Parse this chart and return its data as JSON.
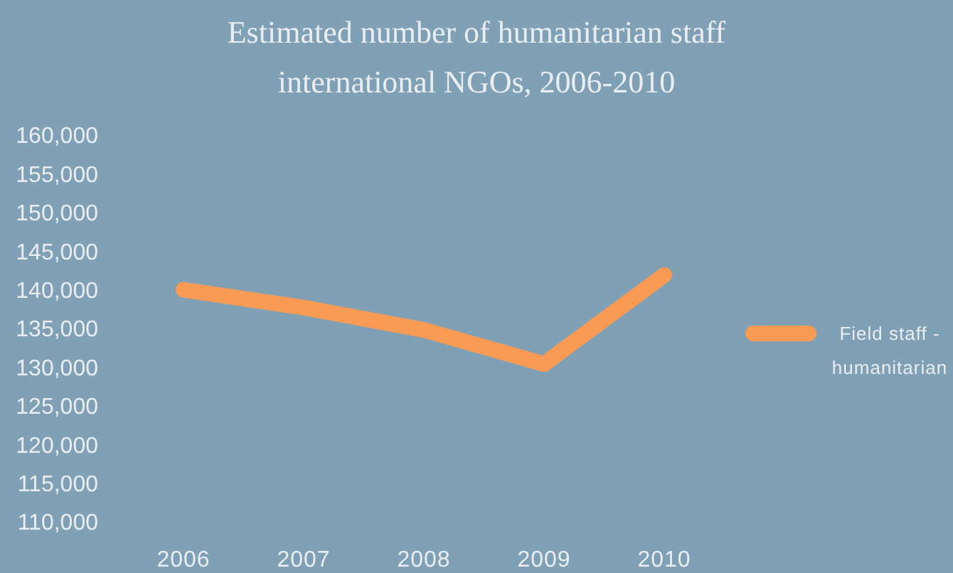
{
  "chart_data": {
    "type": "line",
    "title": "Estimated number of humanitarian staff international NGOs, 2006-2010",
    "categories": [
      "2006",
      "2007",
      "2008",
      "2009",
      "2010"
    ],
    "series": [
      {
        "name": "Field staff - humanitarian",
        "color": "#f99b55",
        "values": [
          140000,
          137700,
          134800,
          130400,
          141900
        ]
      }
    ],
    "ylim": [
      110000,
      160000
    ],
    "yticks": [
      {
        "value": 110000,
        "label": "110,000"
      },
      {
        "value": 115000,
        "label": "115,000"
      },
      {
        "value": 120000,
        "label": "120,000"
      },
      {
        "value": 125000,
        "label": "125,000"
      },
      {
        "value": 130000,
        "label": "130,000"
      },
      {
        "value": 135000,
        "label": "135,000"
      },
      {
        "value": 140000,
        "label": "140,000"
      },
      {
        "value": 145000,
        "label": "145,000"
      },
      {
        "value": 150000,
        "label": "150,000"
      },
      {
        "value": 155000,
        "label": "155,000"
      },
      {
        "value": 160000,
        "label": "160,000"
      }
    ],
    "legend": "right",
    "marker": "none",
    "line_style": "solid"
  }
}
